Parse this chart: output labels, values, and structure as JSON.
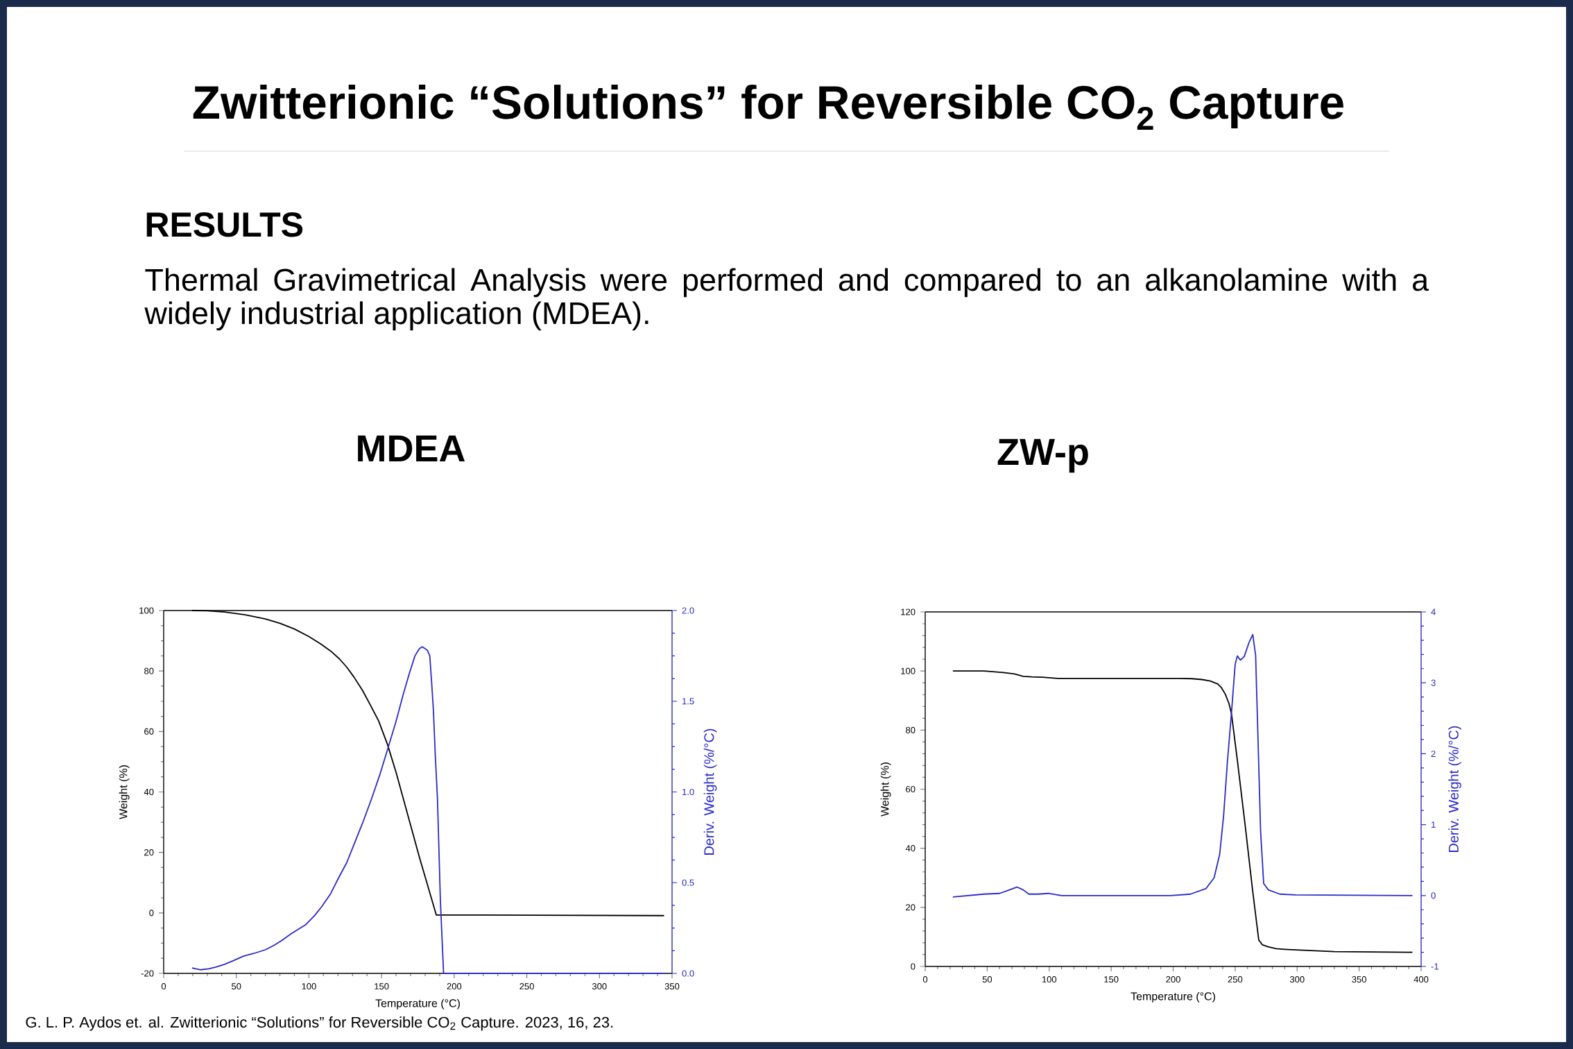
{
  "chart_data": [
    {
      "type": "other",
      "title": "Zwitterionic “Solutions” for Reversible CO$_{2}$ Capture",
      "subtitle": "RESULTS",
      "annotations": [
        "Thermal Gravimetrical Analysis were performed and compared to an alkanolamine with a widely industrial application (MDEA).",
        "G. L. P. Aydos et. al. Zwitterionic “Solutions” for Reversible CO$_{2}$ Capture. 2023, 16, 23."
      ]
    },
    {
      "type": "line",
      "title": "MDEA",
      "xlabel": "Temperature (°C)",
      "ylabel": "Weight (%)",
      "y2label": "Deriv. Weight (%/°C)",
      "xlim": [
        0,
        350
      ],
      "xticks": [
        0,
        50,
        100,
        150,
        200,
        250,
        300,
        350
      ],
      "ylim": [
        -20,
        100
      ],
      "yticks": [
        -20,
        0,
        20,
        40,
        60,
        80,
        100
      ],
      "y2lim": [
        0,
        2
      ],
      "y2ticks": [
        {
          "value": 0,
          "label": "0.0"
        },
        {
          "value": 0.5,
          "label": "0.5"
        },
        {
          "value": 1,
          "label": "1.0"
        },
        {
          "value": 1.5,
          "label": "1.5"
        },
        {
          "value": 2,
          "label": "2.0"
        }
      ],
      "series": [
        {
          "color": "#000000",
          "x": [
            19.5,
            30,
            42,
            56,
            70,
            80,
            90,
            100,
            108,
            115,
            121,
            126,
            131,
            137,
            142,
            148,
            154,
            160,
            168,
            176,
            187.7,
            218,
            344.5
          ],
          "values": [
            100,
            99.9,
            99.5,
            98.6,
            97.2,
            95.8,
            93.9,
            91.4,
            89,
            86.6,
            84,
            81.3,
            78,
            73.5,
            69,
            63.5,
            55.8,
            46.5,
            32.5,
            18.5,
            -0.7,
            -0.7,
            -0.9
          ]
        },
        {
          "color": "#2a2ac8",
          "axis": "y2",
          "x": [
            19.5,
            22,
            25.6,
            31,
            36,
            42,
            48,
            55,
            62,
            70,
            76,
            81,
            88,
            98,
            104,
            109,
            115,
            120,
            126,
            131,
            137,
            143,
            149,
            154,
            160,
            165,
            169,
            173,
            176,
            178,
            180,
            181.6,
            183.2,
            184.5,
            185.7,
            187,
            188.5,
            190.5,
            192.7,
            200,
            344.5
          ],
          "values": [
            0.03,
            0.025,
            0.02,
            0.025,
            0.035,
            0.05,
            0.07,
            0.095,
            0.11,
            0.13,
            0.155,
            0.18,
            0.22,
            0.27,
            0.32,
            0.37,
            0.44,
            0.52,
            0.61,
            0.71,
            0.83,
            0.96,
            1.1,
            1.23,
            1.39,
            1.54,
            1.65,
            1.75,
            1.79,
            1.8,
            1.79,
            1.78,
            1.75,
            1.6,
            1.45,
            1.2,
            0.96,
            0.4,
            0,
            0,
            0
          ]
        }
      ]
    },
    {
      "type": "line",
      "title": "ZW-p",
      "xlabel": "Temperature (°C)",
      "ylabel": "Weight (%)",
      "y2label": "Deriv. Weight (%/°C)",
      "xlim": [
        0,
        400
      ],
      "xticks": [
        0,
        50,
        100,
        150,
        200,
        250,
        300,
        350,
        400
      ],
      "ylim": [
        0,
        120
      ],
      "yticks": [
        0,
        20,
        40,
        60,
        80,
        100,
        120
      ],
      "y2lim": [
        -1,
        4
      ],
      "y2ticks": [
        -1,
        0,
        1,
        2,
        3,
        4
      ],
      "series": [
        {
          "color": "#000000",
          "x": [
            22.3,
            47.4,
            63,
            72,
            79,
            86,
            94.6,
            107,
            204.6,
            215,
            223.4,
            230,
            236,
            239,
            242,
            245,
            247,
            251.7,
            258,
            264,
            269,
            272,
            277,
            283,
            290,
            298.8,
            330,
            393
          ],
          "values": [
            100,
            100,
            99.5,
            99,
            98.2,
            98,
            97.9,
            97.5,
            97.5,
            97.4,
            97.1,
            96.6,
            95.6,
            94.3,
            92.2,
            89,
            85.6,
            70,
            48,
            26,
            9,
            7.3,
            6.6,
            6,
            5.8,
            5.6,
            5,
            4.8
          ]
        },
        {
          "color": "#2a2ac8",
          "axis": "y2",
          "x": [
            22.3,
            47.4,
            60,
            68,
            74,
            79,
            83.6,
            91,
            99.3,
            110,
            198,
            214,
            226.6,
            233,
            237.5,
            240.7,
            243.8,
            247,
            250,
            251.7,
            254.2,
            257.3,
            261,
            264.2,
            266.5,
            268.3,
            270.5,
            273,
            276.8,
            286,
            298.8,
            393
          ],
          "values": [
            -0.02,
            0.02,
            0.03,
            0.08,
            0.12,
            0.08,
            0.02,
            0.02,
            0.03,
            0,
            0,
            0.02,
            0.1,
            0.25,
            0.58,
            1.13,
            1.9,
            2.57,
            3.26,
            3.38,
            3.32,
            3.37,
            3.56,
            3.68,
            3.39,
            2.29,
            0.91,
            0.17,
            0.08,
            0.02,
            0.01,
            0
          ]
        }
      ]
    }
  ]
}
